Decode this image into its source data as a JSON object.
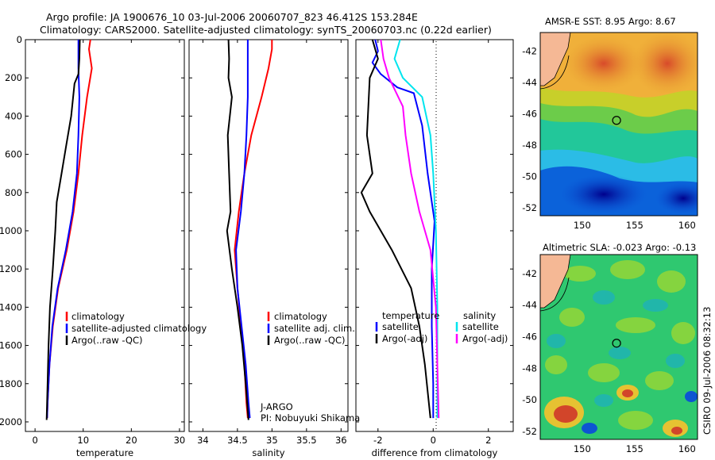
{
  "header": {
    "line1": "Argo profile: JA 1900676_10 03-Jul-2006 20060707_823 46.412S 153.284E",
    "line2": "Climatology: CARS2000. Satellite-adjusted climatology: synTS_20060703.nc (0.22d earlier)"
  },
  "colors": {
    "clim": "#ff0000",
    "sat": "#0000ff",
    "argo": "#000000",
    "sal_sat": "#00e5ee",
    "sal_argo": "#ff00ff",
    "land": "#f5b895"
  },
  "chart_data": [
    {
      "type": "line",
      "title": "",
      "xlabel": "temperature",
      "ylabel": "",
      "xlim": [
        -2,
        31
      ],
      "ylim": [
        2050,
        0
      ],
      "xticks": [
        0,
        10,
        20,
        30
      ],
      "yticks": [
        0,
        200,
        400,
        600,
        800,
        1000,
        1200,
        1400,
        1600,
        1800,
        2000
      ],
      "series": [
        {
          "name": "climatology",
          "color": "#ff0000",
          "points": [
            [
              11.5,
              0
            ],
            [
              11.2,
              50
            ],
            [
              11.8,
              150
            ],
            [
              10.8,
              300
            ],
            [
              9.8,
              500
            ],
            [
              9,
              700
            ],
            [
              8,
              900
            ],
            [
              6.6,
              1100
            ],
            [
              4.8,
              1300
            ],
            [
              3.7,
              1500
            ],
            [
              3,
              1700
            ],
            [
              2.6,
              1900
            ],
            [
              2.5,
              1980
            ]
          ]
        },
        {
          "name": "satellite-adjusted climatology",
          "color": "#0000ff",
          "points": [
            [
              9,
              0
            ],
            [
              9,
              60
            ],
            [
              9,
              150
            ],
            [
              9.2,
              300
            ],
            [
              9,
              500
            ],
            [
              8.7,
              700
            ],
            [
              7.8,
              900
            ],
            [
              6.4,
              1100
            ],
            [
              4.7,
              1300
            ],
            [
              3.6,
              1500
            ],
            [
              3,
              1700
            ],
            [
              2.6,
              1900
            ],
            [
              2.5,
              1980
            ]
          ]
        },
        {
          "name": "Argo(..raw -QC)",
          "color": "#000000",
          "points": [
            [
              9.3,
              0
            ],
            [
              9.2,
              100
            ],
            [
              9,
              180
            ],
            [
              8.2,
              230
            ],
            [
              7.5,
              400
            ],
            [
              6.5,
              550
            ],
            [
              5.5,
              700
            ],
            [
              4.5,
              850
            ],
            [
              4.2,
              1000
            ],
            [
              3.7,
              1200
            ],
            [
              3.1,
              1400
            ],
            [
              2.8,
              1600
            ],
            [
              2.6,
              1800
            ],
            [
              2.4,
              1990
            ]
          ]
        }
      ],
      "legend": [
        "climatology",
        "satellite-adjusted climatology",
        "Argo(..raw -QC)"
      ]
    },
    {
      "type": "line",
      "title": "",
      "xlabel": "salinity",
      "ylabel": "",
      "xlim": [
        33.8,
        36.1
      ],
      "ylim": [
        2050,
        0
      ],
      "xticks": [
        34,
        34.5,
        35,
        35.5,
        36
      ],
      "series": [
        {
          "name": "climatology",
          "color": "#ff0000",
          "points": [
            [
              35,
              0
            ],
            [
              35,
              50
            ],
            [
              34.95,
              150
            ],
            [
              34.85,
              300
            ],
            [
              34.7,
              500
            ],
            [
              34.6,
              700
            ],
            [
              34.52,
              900
            ],
            [
              34.46,
              1100
            ],
            [
              34.5,
              1300
            ],
            [
              34.55,
              1500
            ],
            [
              34.6,
              1700
            ],
            [
              34.63,
              1900
            ],
            [
              34.65,
              1980
            ]
          ]
        },
        {
          "name": "satellite adj. clim.",
          "color": "#0000ff",
          "points": [
            [
              34.65,
              0
            ],
            [
              34.65,
              150
            ],
            [
              34.65,
              300
            ],
            [
              34.63,
              500
            ],
            [
              34.6,
              700
            ],
            [
              34.55,
              900
            ],
            [
              34.48,
              1100
            ],
            [
              34.5,
              1300
            ],
            [
              34.56,
              1500
            ],
            [
              34.62,
              1700
            ],
            [
              34.66,
              1900
            ],
            [
              34.68,
              1980
            ]
          ]
        },
        {
          "name": "Argo(..raw -QC)",
          "color": "#000000",
          "points": [
            [
              34.37,
              0
            ],
            [
              34.38,
              100
            ],
            [
              34.37,
              200
            ],
            [
              34.42,
              300
            ],
            [
              34.36,
              500
            ],
            [
              34.38,
              700
            ],
            [
              34.4,
              900
            ],
            [
              34.35,
              1000
            ],
            [
              34.42,
              1200
            ],
            [
              34.5,
              1400
            ],
            [
              34.57,
              1600
            ],
            [
              34.62,
              1800
            ],
            [
              34.66,
              1990
            ]
          ]
        }
      ],
      "legend": [
        "climatology",
        "satellite adj. clim.",
        "Argo(..raw -QC)"
      ],
      "annotation": [
        "J-ARGO",
        "PI: Nobuyuki Shikama"
      ]
    },
    {
      "type": "line",
      "title": "",
      "xlabel": "difference from climatology",
      "ylabel": "",
      "xlim": [
        -2.8,
        2.9
      ],
      "ylim": [
        2050,
        0
      ],
      "xticks": [
        -2,
        0,
        2
      ],
      "series": [
        {
          "name": "temperature satellite",
          "color": "#0000ff",
          "points": [
            [
              -2.1,
              0
            ],
            [
              -2,
              60
            ],
            [
              -2.2,
              120
            ],
            [
              -1.9,
              180
            ],
            [
              -1.3,
              250
            ],
            [
              -0.7,
              280
            ],
            [
              -0.4,
              450
            ],
            [
              -0.2,
              700
            ],
            [
              0.05,
              950
            ],
            [
              -0.05,
              1200
            ],
            [
              -0.05,
              1500
            ],
            [
              0,
              1800
            ],
            [
              0,
              1980
            ]
          ]
        },
        {
          "name": "temperature Argo(-adj)",
          "color": "#000000",
          "points": [
            [
              -2.2,
              0
            ],
            [
              -2,
              100
            ],
            [
              -2.3,
              200
            ],
            [
              -2.4,
              500
            ],
            [
              -2.2,
              700
            ],
            [
              -2.6,
              800
            ],
            [
              -2.3,
              900
            ],
            [
              -1.5,
              1100
            ],
            [
              -0.8,
              1300
            ],
            [
              -0.5,
              1500
            ],
            [
              -0.3,
              1700
            ],
            [
              -0.1,
              1980
            ]
          ]
        },
        {
          "name": "salinity satellite",
          "color": "#00e5ee",
          "points": [
            [
              -1.2,
              0
            ],
            [
              -1.4,
              100
            ],
            [
              -1.1,
              200
            ],
            [
              -0.4,
              300
            ],
            [
              -0.1,
              500
            ],
            [
              0,
              700
            ],
            [
              0.1,
              1000
            ],
            [
              0.15,
              1400
            ],
            [
              0.15,
              1800
            ],
            [
              0.15,
              1980
            ]
          ]
        },
        {
          "name": "salinity Argo(-adj)",
          "color": "#ff00ff",
          "points": [
            [
              -1.9,
              0
            ],
            [
              -1.8,
              100
            ],
            [
              -1.6,
              200
            ],
            [
              -1.1,
              350
            ],
            [
              -1,
              500
            ],
            [
              -0.8,
              700
            ],
            [
              -0.5,
              900
            ],
            [
              -0.1,
              1100
            ],
            [
              0.1,
              1400
            ],
            [
              0.15,
              1700
            ],
            [
              0.2,
              1980
            ]
          ]
        }
      ],
      "legend_titles": [
        "temperature",
        "salinity"
      ],
      "legend": [
        "satellite",
        "Argo(-adj)",
        "satellite",
        "Argo(-adj)"
      ]
    },
    {
      "type": "heatmap",
      "title": "AMSR-E SST: 8.95  Argo: 8.67",
      "xlim": [
        146,
        161
      ],
      "ylim": [
        -52.5,
        -40.8
      ],
      "xticks": [
        150,
        155,
        160
      ],
      "yticks": [
        -42,
        -44,
        -46,
        -48,
        -50,
        -52
      ],
      "marker": {
        "lon": 153.28,
        "lat": -46.41
      }
    },
    {
      "type": "heatmap",
      "title": "Altimetric SLA: -0.023  Argo: -0.13",
      "xlim": [
        146,
        161
      ],
      "ylim": [
        -52.5,
        -40.8
      ],
      "xticks": [
        150,
        155,
        160
      ],
      "yticks": [
        -42,
        -44,
        -46,
        -48,
        -50,
        -52
      ],
      "marker": {
        "lon": 153.28,
        "lat": -46.41
      }
    }
  ],
  "footer": {
    "stamp": "CSIRO 09-Jul-2006 08:32:13"
  }
}
